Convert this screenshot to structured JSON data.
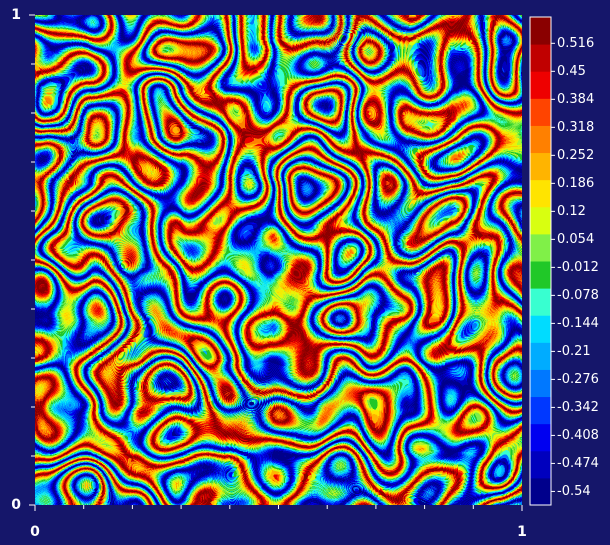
{
  "chart_data": {
    "type": "heatmap",
    "xlim": [
      0,
      1
    ],
    "ylim": [
      0,
      1
    ],
    "xticks": [
      0,
      1
    ],
    "yticks": [
      0,
      1
    ],
    "minor_xticks": [
      0.1,
      0.2,
      0.3,
      0.4,
      0.5,
      0.6,
      0.7,
      0.8,
      0.9
    ],
    "minor_yticks": [
      0.1,
      0.2,
      0.3,
      0.4,
      0.5,
      0.6,
      0.7,
      0.8,
      0.9
    ],
    "colorbar": {
      "clim": [
        -0.572,
        0.578
      ],
      "ticks": [
        -0.54,
        -0.474,
        -0.408,
        -0.342,
        -0.276,
        -0.21,
        -0.144,
        -0.078,
        -0.012,
        0.054,
        0.12,
        0.186,
        0.252,
        0.318,
        0.384,
        0.45,
        0.516
      ],
      "colors": [
        "#00008c",
        "#0000be",
        "#0000f0",
        "#0038ff",
        "#0078ff",
        "#00acff",
        "#00dcff",
        "#38ffd0",
        "#20c828",
        "#80f048",
        "#d8ff10",
        "#ffe400",
        "#ffb400",
        "#ff8000",
        "#ff4400",
        "#ee0000",
        "#c00000",
        "#8a0000"
      ]
    }
  }
}
